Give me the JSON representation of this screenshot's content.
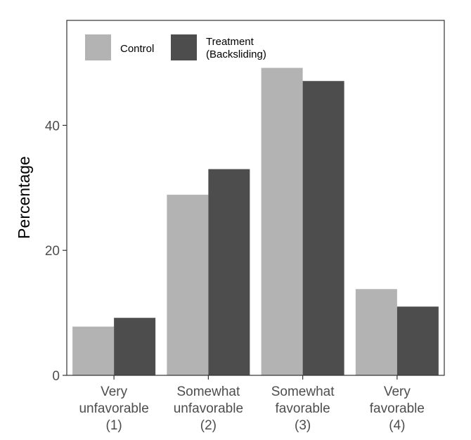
{
  "chart_data": {
    "type": "bar",
    "title": "",
    "xlabel": "",
    "ylabel": "Percentage",
    "categories": [
      [
        "Very",
        "unfavorable",
        "(1)"
      ],
      [
        "Somewhat",
        "unfavorable",
        "(2)"
      ],
      [
        "Somewhat",
        "favorable",
        "(3)"
      ],
      [
        "Very",
        "favorable",
        "(4)"
      ]
    ],
    "series": [
      {
        "name": "Control",
        "values": [
          7.8,
          28.9,
          49.2,
          13.8
        ],
        "color": "#b3b3b3"
      },
      {
        "name": "Treatment\n(Backsliding)",
        "values": [
          9.2,
          33.0,
          47.1,
          11.0
        ],
        "color": "#4d4d4d"
      }
    ],
    "yticks": [
      0,
      20,
      40
    ],
    "ylim": [
      0,
      56.8
    ],
    "grid": false,
    "legend_position": "top-left, inside"
  }
}
